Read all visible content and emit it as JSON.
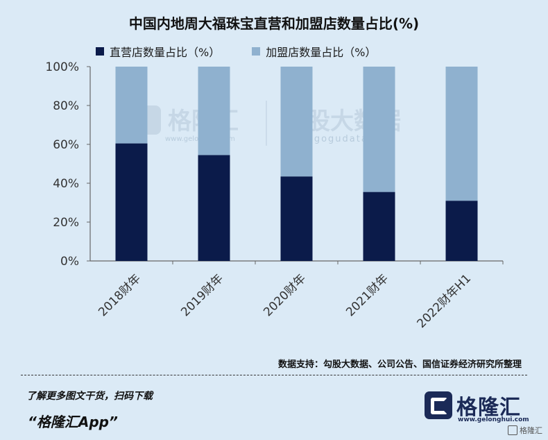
{
  "title": "中国内地周大福珠宝直营和加盟店数量占比(%)",
  "legend": [
    {
      "label": "直营店数量占比（%）",
      "color": "#0b1b4a"
    },
    {
      "label": "加盟店数量占比（%）",
      "color": "#8fb1cf"
    }
  ],
  "chart_data": {
    "type": "bar",
    "stacked": true,
    "categories": [
      "2018财年",
      "2019财年",
      "2020财年",
      "2021财年",
      "2022财年H1"
    ],
    "series": [
      {
        "name": "直营店数量占比（%）",
        "color": "#0b1b4a",
        "values": [
          60.5,
          54.5,
          43.5,
          35.5,
          31
        ]
      },
      {
        "name": "加盟店数量占比（%）",
        "color": "#8fb1cf",
        "values": [
          39.5,
          45.5,
          56.5,
          64.5,
          69
        ]
      }
    ],
    "ylim": [
      0,
      100
    ],
    "yticks": [
      "0%",
      "20%",
      "40%",
      "60%",
      "80%",
      "100%"
    ],
    "grid": false,
    "legend_position": "top"
  },
  "watermark": {
    "brand": "格隆汇",
    "brand_url": "www.gelonghui.com",
    "partner": "勾股大数据",
    "partner_url": "www.gogudata.com"
  },
  "source": "数据支持：勾股大数据、公司公告、国信证券经济研究所整理",
  "footer": {
    "line1": "了解更多图文干货，扫码下载",
    "line2": "“格隆汇App”",
    "brand_name": "格隆汇",
    "brand_url": "www.gelonghui.com",
    "corner_label": "格隆汇"
  }
}
